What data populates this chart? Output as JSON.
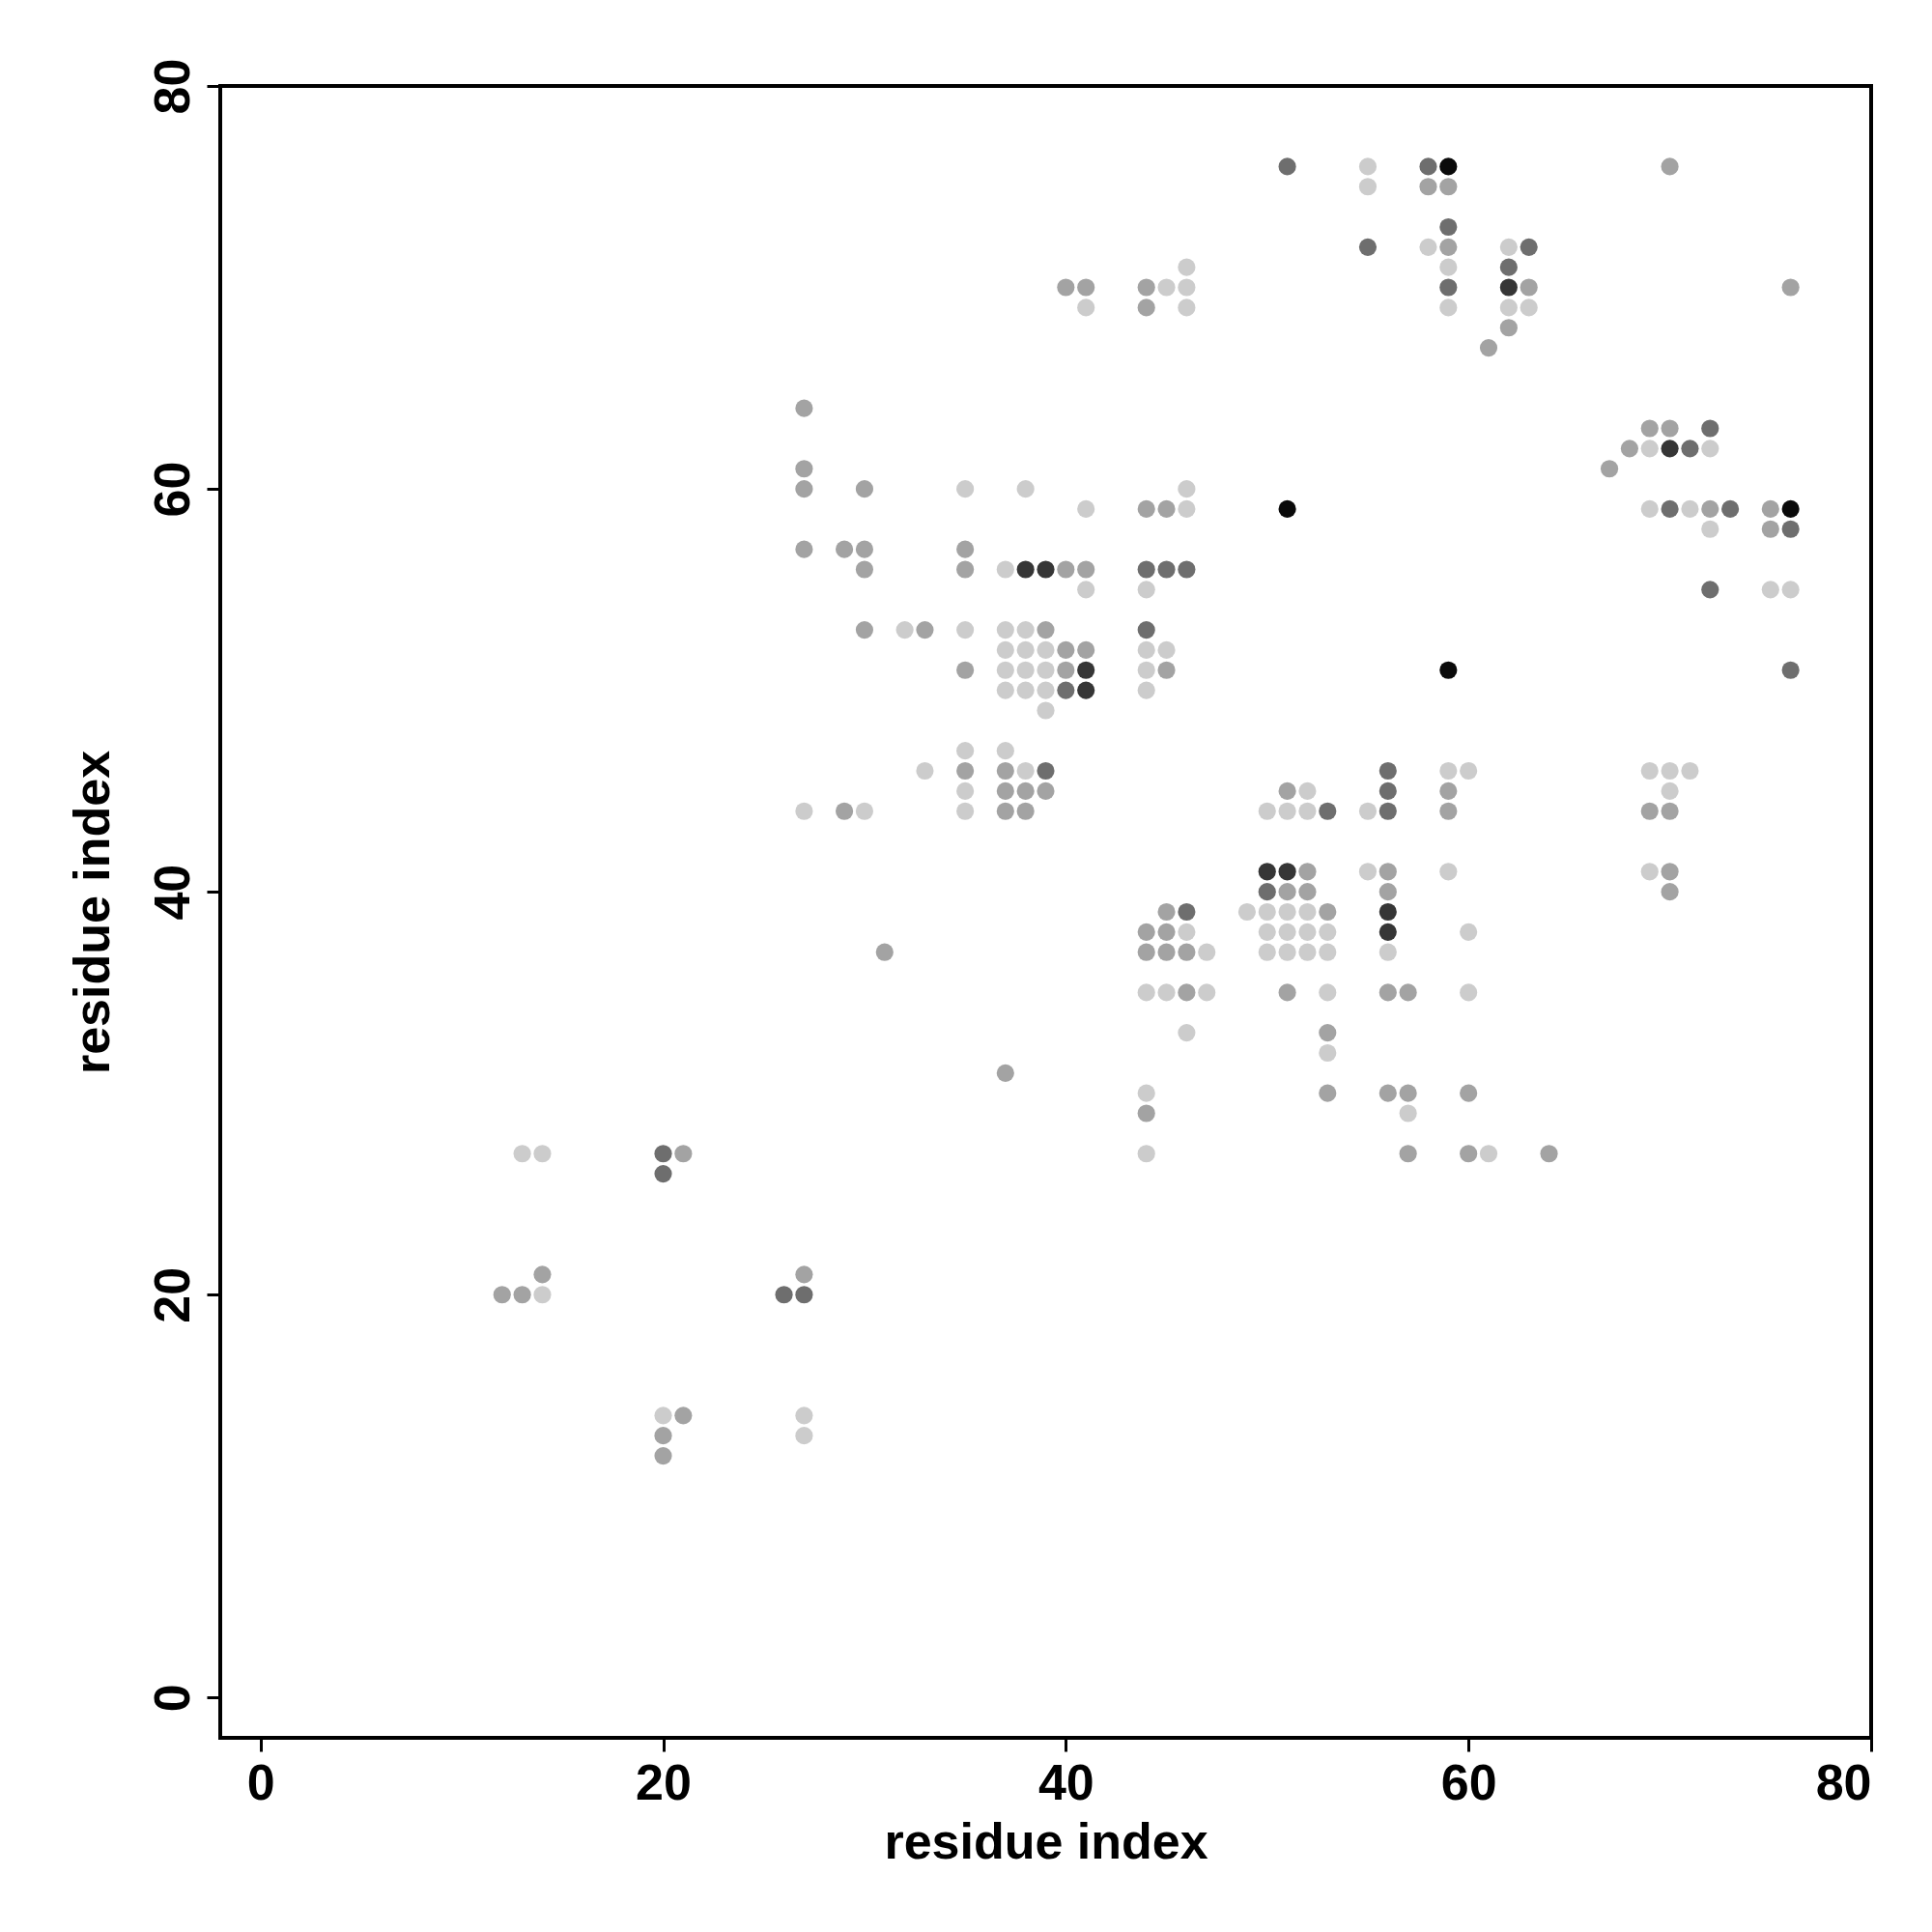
{
  "chart_data": {
    "type": "scatter",
    "xlabel": "residue index",
    "ylabel": "residue index",
    "xlim": [
      -2,
      80
    ],
    "ylim": [
      -2,
      80
    ],
    "xticks": [
      0,
      20,
      40,
      60,
      80
    ],
    "yticks": [
      0,
      20,
      40,
      60,
      80
    ],
    "grid": false,
    "legend": false,
    "marker": "circle",
    "series": [
      {
        "color": "#cccccc",
        "x": [
          55,
          55,
          58,
          62,
          46,
          59,
          45,
          46,
          41,
          46,
          59,
          62,
          63,
          72,
          69,
          35,
          38,
          46,
          41,
          46,
          71,
          69,
          72,
          37,
          41,
          44,
          75,
          76,
          32,
          35,
          37,
          38,
          37,
          38,
          39,
          44,
          45,
          37,
          38,
          39,
          44,
          37,
          38,
          39,
          44,
          39,
          35,
          37,
          33,
          38,
          59,
          60,
          69,
          70,
          71,
          35,
          52,
          70,
          27,
          30,
          35,
          52,
          50,
          51,
          55,
          59,
          69,
          55,
          49,
          50,
          51,
          52,
          46,
          50,
          51,
          52,
          53,
          60,
          47,
          50,
          51,
          52,
          53,
          56,
          44,
          45,
          47,
          53,
          60,
          46,
          53,
          44,
          57,
          13,
          14,
          44,
          61,
          14,
          20,
          27,
          27
        ],
        "values": [
          76,
          75,
          72,
          72,
          71,
          71,
          70,
          70,
          69,
          69,
          69,
          69,
          69,
          62,
          62,
          60,
          60,
          60,
          59,
          59,
          59,
          59,
          58,
          56,
          55,
          55,
          55,
          55,
          53,
          53,
          53,
          53,
          52,
          52,
          52,
          52,
          52,
          51,
          51,
          51,
          51,
          50,
          50,
          50,
          50,
          49,
          47,
          47,
          46,
          46,
          46,
          46,
          46,
          46,
          46,
          45,
          45,
          45,
          44,
          44,
          44,
          44,
          44,
          44,
          44,
          41,
          41,
          41,
          39,
          39,
          39,
          39,
          38,
          38,
          38,
          38,
          38,
          38,
          37,
          37,
          37,
          37,
          37,
          37,
          35,
          35,
          35,
          35,
          35,
          33,
          32,
          30,
          29,
          27,
          27,
          27,
          27,
          20,
          14,
          14,
          13
        ]
      },
      {
        "color": "#a3a3a3",
        "x": [
          70,
          58,
          59,
          59,
          40,
          41,
          44,
          63,
          76,
          44,
          62,
          61,
          27,
          69,
          70,
          68,
          27,
          67,
          27,
          30,
          44,
          45,
          72,
          75,
          75,
          27,
          29,
          30,
          35,
          30,
          35,
          40,
          41,
          30,
          33,
          39,
          40,
          41,
          35,
          40,
          45,
          35,
          37,
          37,
          38,
          39,
          51,
          59,
          29,
          37,
          38,
          59,
          69,
          70,
          52,
          56,
          70,
          51,
          52,
          56,
          70,
          45,
          53,
          44,
          45,
          31,
          44,
          45,
          46,
          46,
          51,
          56,
          57,
          53,
          37,
          53,
          56,
          57,
          60,
          44,
          21,
          57,
          60,
          64,
          14,
          27,
          12,
          13,
          21,
          20,
          20
        ],
        "values": [
          76,
          75,
          75,
          72,
          70,
          70,
          70,
          70,
          70,
          69,
          68,
          67,
          64,
          63,
          63,
          62,
          61,
          61,
          60,
          60,
          59,
          59,
          59,
          59,
          58,
          57,
          57,
          57,
          57,
          56,
          56,
          56,
          56,
          53,
          53,
          53,
          52,
          52,
          51,
          51,
          51,
          46,
          46,
          45,
          45,
          45,
          45,
          45,
          44,
          44,
          44,
          44,
          44,
          44,
          41,
          41,
          41,
          40,
          40,
          40,
          40,
          39,
          39,
          38,
          38,
          37,
          37,
          37,
          37,
          35,
          35,
          35,
          35,
          33,
          31,
          30,
          30,
          30,
          30,
          29,
          27,
          27,
          27,
          27,
          21,
          21,
          20,
          20,
          14,
          13,
          12
        ]
      },
      {
        "color": "#6e6e6e",
        "x": [
          51,
          58,
          59,
          55,
          63,
          62,
          59,
          72,
          71,
          70,
          73,
          76,
          44,
          45,
          46,
          72,
          44,
          76,
          40,
          39,
          56,
          56,
          53,
          56,
          50,
          46,
          20,
          20,
          26,
          27
        ],
        "values": [
          76,
          76,
          73,
          72,
          72,
          71,
          70,
          63,
          62,
          59,
          59,
          58,
          56,
          56,
          56,
          55,
          53,
          51,
          50,
          46,
          46,
          45,
          44,
          44,
          40,
          39,
          27,
          26,
          20,
          20
        ]
      },
      {
        "color": "#363636",
        "x": [
          62,
          70,
          38,
          39,
          41,
          41,
          50,
          51,
          56,
          56
        ],
        "values": [
          70,
          62,
          56,
          56,
          51,
          50,
          41,
          41,
          39,
          38
        ]
      },
      {
        "color": "#0a0a0a",
        "x": [
          59,
          51,
          76,
          59
        ],
        "values": [
          76,
          59,
          59,
          51
        ]
      }
    ]
  }
}
